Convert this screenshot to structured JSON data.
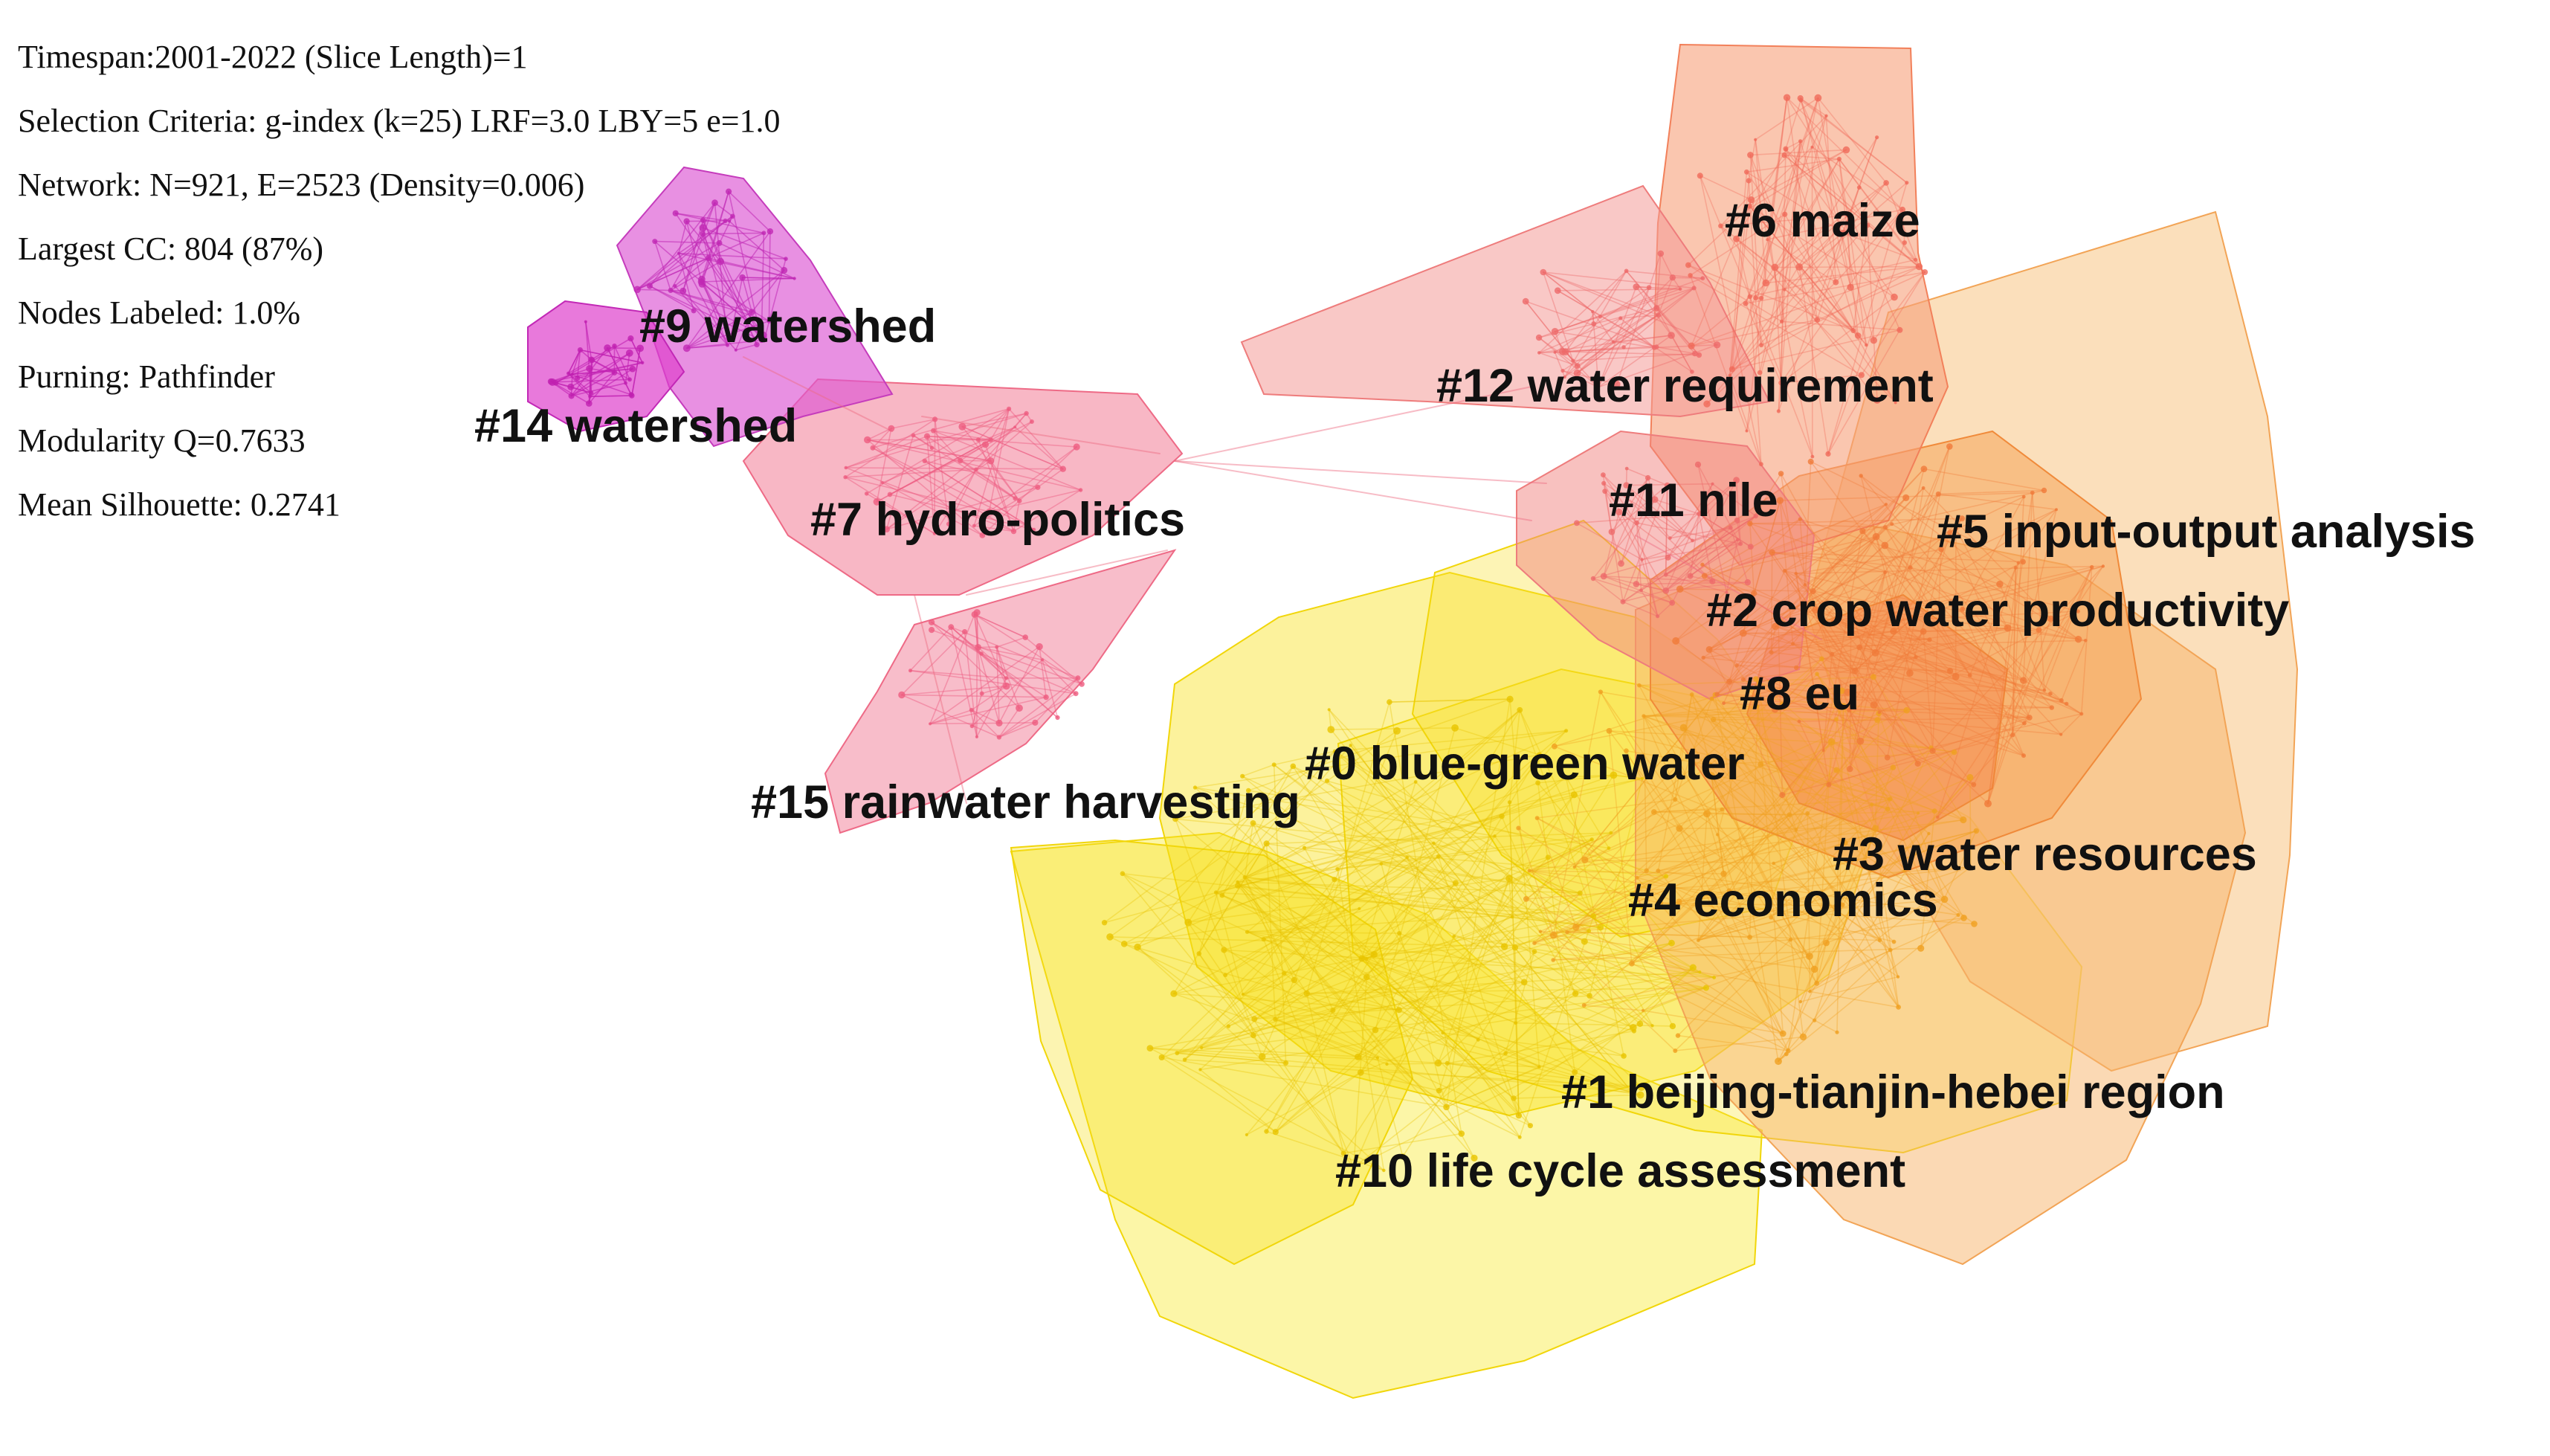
{
  "stats": [
    "Timespan:2001-2022 (Slice Length)=1",
    "Selection Criteria: g-index (k=25) LRF=3.0 LBY=5 e=1.0",
    "Network: N=921, E=2523 (Density=0.006)",
    "Largest CC: 804 (87%)",
    "Nodes Labeled: 1.0%",
    "Purning: Pathfinder",
    "Modularity Q=0.7633",
    "Mean Silhouette: 0.2741"
  ],
  "clusters": [
    {
      "id": "0",
      "label": "#0 blue-green water",
      "color": "#f7e317"
    },
    {
      "id": "1",
      "label": "#1 beijing-tianjin-hebei region",
      "color": "#f9e43a"
    },
    {
      "id": "2",
      "label": "#2 crop water productivity",
      "color": "#f6a45a"
    },
    {
      "id": "3",
      "label": "#3 water resources",
      "color": "#f7b46a"
    },
    {
      "id": "4",
      "label": "#4 economics",
      "color": "#f5d020"
    },
    {
      "id": "5",
      "label": "#5 input-output analysis",
      "color": "#f8bc7a"
    },
    {
      "id": "6",
      "label": "#6 maize",
      "color": "#f59a6c"
    },
    {
      "id": "7",
      "label": "#7 hydro-politics",
      "color": "#f0708a"
    },
    {
      "id": "8",
      "label": "#8 eu",
      "color": "#f58a50"
    },
    {
      "id": "9",
      "label": "#9 watershed",
      "color": "#d94bcf"
    },
    {
      "id": "10",
      "label": "#10 life cycle assessment",
      "color": "#f8ea40"
    },
    {
      "id": "11",
      "label": "#11 nile",
      "color": "#f27f80"
    },
    {
      "id": "12",
      "label": "#12 water requirement",
      "color": "#f28482"
    },
    {
      "id": "14",
      "label": "#14 watershed",
      "color": "#dc3cc6"
    },
    {
      "id": "15",
      "label": "#15 rainwater harvesting",
      "color": "#f07690"
    }
  ]
}
